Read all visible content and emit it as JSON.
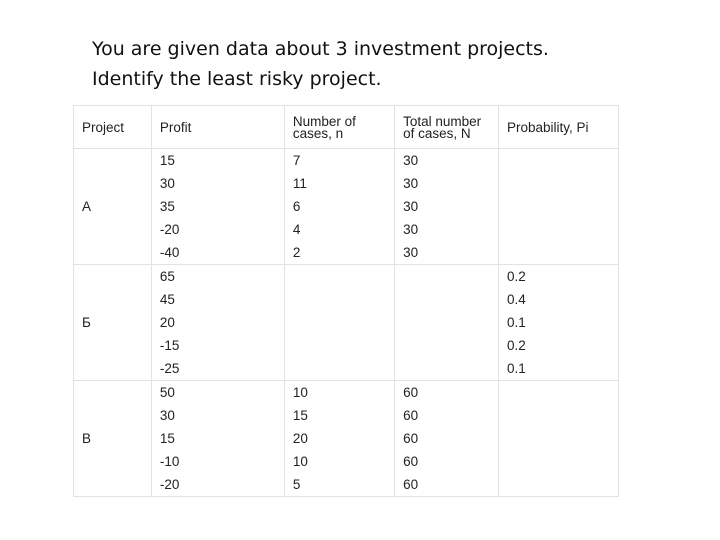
{
  "title": {
    "line1": "You are given data about 3 investment projects.",
    "line2": "Identify the least risky project."
  },
  "table": {
    "headers": {
      "project": "Project",
      "profit": "Profit",
      "n_line1": "Number of",
      "n_line2": "cases, n",
      "N_line1": "Total number",
      "N_line2": "of cases, N",
      "probability": "Probability, Pi"
    },
    "projects": [
      {
        "name": "A",
        "profit": [
          "15",
          "30",
          "35",
          "-20",
          "-40"
        ],
        "n": [
          "7",
          "11",
          "6",
          "4",
          "2"
        ],
        "N": [
          "30",
          "30",
          "30",
          "30",
          "30"
        ],
        "p": [
          "",
          "",
          "",
          "",
          ""
        ]
      },
      {
        "name": "Б",
        "profit": [
          "65",
          "45",
          "20",
          "-15",
          "-25"
        ],
        "n": [
          "",
          "",
          "",
          "",
          ""
        ],
        "N": [
          "",
          "",
          "",
          "",
          ""
        ],
        "p": [
          "0.2",
          "0.4",
          "0.1",
          "0.2",
          "0.1"
        ]
      },
      {
        "name": "В",
        "profit": [
          "50",
          "30",
          "15",
          "-10",
          "-20"
        ],
        "n": [
          "10",
          "15",
          "20",
          "10",
          "5"
        ],
        "N": [
          "60",
          "60",
          "60",
          "60",
          "60"
        ],
        "p": [
          "",
          "",
          "",
          "",
          ""
        ]
      }
    ]
  }
}
